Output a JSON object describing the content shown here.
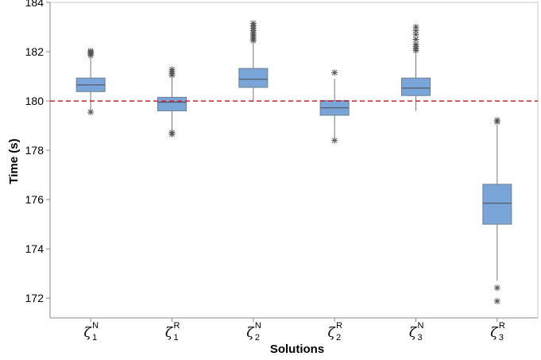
{
  "chart_data": {
    "type": "box",
    "xlabel": "Solutions",
    "ylabel": "Time (s)",
    "ylim": [
      171.2,
      184
    ],
    "yticks": [
      172,
      174,
      176,
      178,
      180,
      182,
      184
    ],
    "grid": false,
    "reference_line": {
      "value": 180,
      "style": "dashed",
      "color": "#cc2233"
    },
    "box_color": "#7aa5d8",
    "categories": [
      {
        "symbol": "ζ",
        "sup": "N",
        "sub": "1"
      },
      {
        "symbol": "ζ",
        "sup": "R",
        "sub": "1"
      },
      {
        "symbol": "ζ",
        "sup": "N",
        "sub": "2"
      },
      {
        "symbol": "ζ",
        "sup": "R",
        "sub": "2"
      },
      {
        "symbol": "ζ",
        "sup": "N",
        "sub": "3"
      },
      {
        "symbol": "ζ",
        "sup": "R",
        "sub": "3"
      }
    ],
    "boxes": [
      {
        "q1": 180.38,
        "median": 180.65,
        "q3": 180.93,
        "whisker_low": 179.6,
        "whisker_high": 181.8,
        "outliers": [
          179.55,
          181.85,
          181.92,
          181.98,
          182.03
        ]
      },
      {
        "q1": 179.6,
        "median": 179.95,
        "q3": 180.15,
        "whisker_low": 178.8,
        "whisker_high": 181.0,
        "outliers": [
          178.65,
          178.72,
          181.05,
          181.12,
          181.2,
          181.28
        ]
      },
      {
        "q1": 180.55,
        "median": 180.88,
        "q3": 181.32,
        "whisker_low": 179.95,
        "whisker_high": 182.4,
        "outliers": [
          182.45,
          182.52,
          182.6,
          182.68,
          182.75,
          182.85,
          182.95,
          183.05,
          183.15
        ]
      },
      {
        "q1": 179.42,
        "median": 179.72,
        "q3": 180.02,
        "whisker_low": 178.5,
        "whisker_high": 180.9,
        "outliers": [
          178.4,
          181.15
        ]
      },
      {
        "q1": 180.22,
        "median": 180.52,
        "q3": 180.93,
        "whisker_low": 179.6,
        "whisker_high": 182.0,
        "outliers": [
          182.05,
          182.12,
          182.2,
          182.3,
          182.5,
          182.7,
          182.85,
          183.0
        ]
      },
      {
        "q1": 175.0,
        "median": 175.85,
        "q3": 176.62,
        "whisker_low": 172.7,
        "whisker_high": 179.0,
        "outliers": [
          171.88,
          172.42,
          179.15,
          179.22
        ]
      }
    ]
  }
}
